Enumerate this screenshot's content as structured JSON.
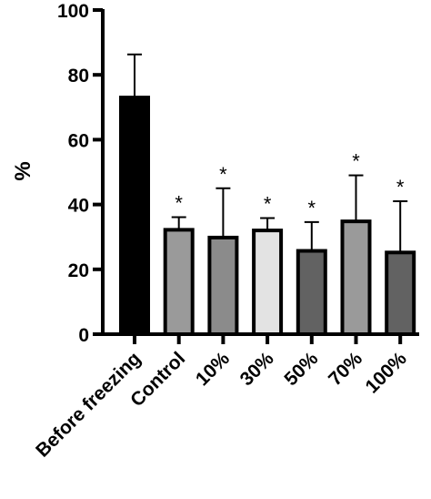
{
  "chart_data": {
    "type": "bar",
    "title": "",
    "xlabel": "",
    "ylabel": "%",
    "ylim": [
      0,
      100
    ],
    "yticks": [
      0,
      20,
      40,
      60,
      80,
      100
    ],
    "grid": false,
    "categories": [
      "Before freezing",
      "Control",
      "10%",
      "30%",
      "50%",
      "70%",
      "100%"
    ],
    "values": [
      73,
      32.2,
      29.8,
      32,
      25.7,
      34.8,
      25.2
    ],
    "error_upper": [
      86.3,
      36.1,
      45,
      35.8,
      34.6,
      49,
      41
    ],
    "significance": [
      "",
      "*",
      "*",
      "*",
      "*",
      "*",
      "*"
    ],
    "bar_colors": [
      "#000000",
      "#9a9a9a",
      "#8b8b8b",
      "#e3e3e3",
      "#626262",
      "#9a9a9a",
      "#626262"
    ]
  }
}
